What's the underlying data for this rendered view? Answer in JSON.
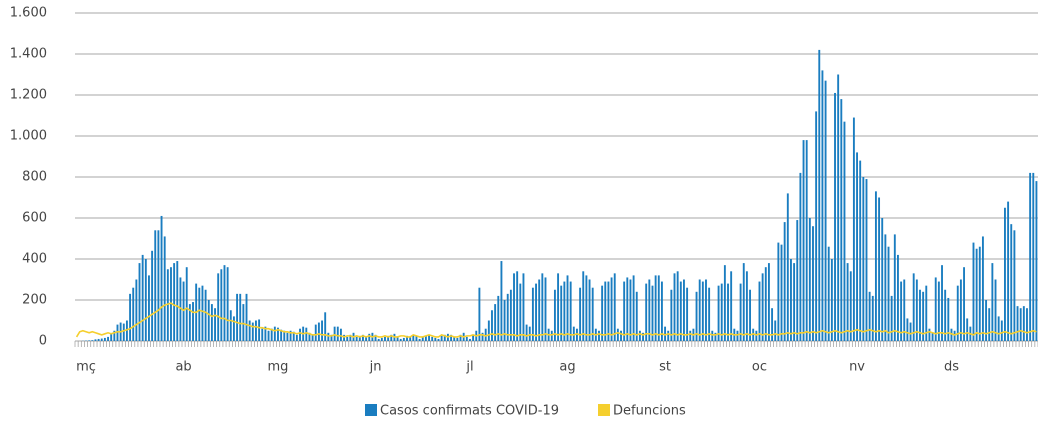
{
  "chart_data": {
    "type": "bar_line",
    "categories": [
      "mç",
      null,
      null,
      null,
      null,
      null,
      null,
      null,
      null,
      null,
      null,
      null,
      null,
      null,
      null,
      null,
      null,
      null,
      null,
      null,
      null,
      null,
      null,
      null,
      null,
      null,
      null,
      null,
      null,
      null,
      null,
      "ab",
      null,
      null,
      null,
      null,
      null,
      null,
      null,
      null,
      null,
      null,
      null,
      null,
      null,
      null,
      null,
      null,
      null,
      null,
      null,
      null,
      null,
      null,
      null,
      null,
      null,
      null,
      null,
      null,
      null,
      "mg",
      null,
      null,
      null,
      null,
      null,
      null,
      null,
      null,
      null,
      null,
      null,
      null,
      null,
      null,
      null,
      null,
      null,
      null,
      null,
      null,
      null,
      null,
      null,
      null,
      null,
      null,
      null,
      null,
      null,
      null,
      "jn",
      null,
      null,
      null,
      null,
      null,
      null,
      null,
      null,
      null,
      null,
      null,
      null,
      null,
      null,
      null,
      null,
      null,
      null,
      null,
      null,
      null,
      null,
      null,
      null,
      null,
      null,
      null,
      null,
      null,
      "jl",
      null,
      null,
      null,
      null,
      null,
      null,
      null,
      null,
      null,
      null,
      null,
      null,
      null,
      null,
      null,
      null,
      null,
      null,
      null,
      null,
      null,
      null,
      null,
      null,
      null,
      null,
      null,
      null,
      null,
      null,
      "ag",
      null,
      null,
      null,
      null,
      null,
      null,
      null,
      null,
      null,
      null,
      null,
      null,
      null,
      null,
      null,
      null,
      null,
      null,
      null,
      null,
      null,
      null,
      null,
      null,
      null,
      null,
      null,
      null,
      null,
      null,
      "st",
      null,
      null,
      null,
      null,
      null,
      null,
      null,
      null,
      null,
      null,
      null,
      null,
      null,
      null,
      null,
      null,
      null,
      null,
      null,
      null,
      null,
      null,
      null,
      null,
      null,
      null,
      null,
      null,
      null,
      "oc",
      null,
      null,
      null,
      null,
      null,
      null,
      null,
      null,
      null,
      null,
      null,
      null,
      null,
      null,
      null,
      null,
      null,
      null,
      null,
      null,
      null,
      null,
      null,
      null,
      null,
      null,
      null,
      null,
      null,
      null,
      "nv",
      null,
      null,
      null,
      null,
      null,
      null,
      null,
      null,
      null,
      null,
      null,
      null,
      null,
      null,
      null,
      null,
      null,
      null,
      null,
      null,
      null,
      null,
      null,
      null,
      null,
      null,
      null,
      null,
      null,
      "ds",
      null,
      null,
      null,
      null,
      null,
      null,
      null,
      null,
      null,
      null,
      null,
      null,
      null,
      null,
      null,
      null,
      null,
      null,
      null,
      null,
      null,
      null,
      null,
      null,
      null,
      null,
      null,
      null,
      null,
      null
    ],
    "series": [
      {
        "name": "Casos confirmats COVID-19",
        "color": "#1a7dc0",
        "kind": "bar",
        "values": [
          0,
          0,
          1,
          2,
          3,
          4,
          8,
          10,
          12,
          15,
          20,
          35,
          50,
          80,
          90,
          85,
          100,
          230,
          260,
          300,
          380,
          420,
          400,
          320,
          440,
          540,
          540,
          610,
          510,
          350,
          360,
          380,
          390,
          310,
          290,
          360,
          180,
          190,
          280,
          260,
          270,
          250,
          200,
          180,
          160,
          330,
          350,
          370,
          360,
          150,
          120,
          230,
          230,
          180,
          230,
          100,
          90,
          100,
          105,
          60,
          70,
          50,
          60,
          70,
          65,
          55,
          50,
          40,
          50,
          45,
          30,
          60,
          70,
          65,
          40,
          30,
          80,
          90,
          100,
          140,
          40,
          30,
          70,
          70,
          60,
          30,
          20,
          30,
          40,
          20,
          25,
          30,
          20,
          35,
          40,
          30,
          10,
          15,
          20,
          25,
          30,
          35,
          20,
          10,
          15,
          25,
          20,
          30,
          25,
          10,
          20,
          25,
          30,
          20,
          15,
          10,
          25,
          30,
          35,
          30,
          20,
          15,
          30,
          40,
          20,
          10,
          30,
          50,
          260,
          40,
          60,
          100,
          150,
          180,
          220,
          390,
          200,
          230,
          250,
          330,
          340,
          280,
          330,
          80,
          70,
          260,
          280,
          300,
          330,
          310,
          60,
          50,
          250,
          330,
          270,
          290,
          320,
          290,
          70,
          60,
          260,
          340,
          320,
          300,
          260,
          60,
          50,
          270,
          290,
          290,
          310,
          330,
          60,
          50,
          290,
          310,
          300,
          320,
          240,
          50,
          40,
          280,
          300,
          270,
          320,
          320,
          290,
          70,
          50,
          250,
          330,
          340,
          290,
          300,
          260,
          50,
          60,
          240,
          300,
          290,
          300,
          260,
          50,
          40,
          270,
          280,
          370,
          280,
          340,
          60,
          50,
          280,
          380,
          340,
          250,
          60,
          50,
          290,
          330,
          360,
          380,
          160,
          100,
          480,
          470,
          580,
          720,
          400,
          380,
          590,
          820,
          980,
          980,
          600,
          560,
          1120,
          1420,
          1320,
          1270,
          460,
          400,
          1210,
          1300,
          1180,
          1070,
          380,
          340,
          1090,
          920,
          880,
          800,
          790,
          240,
          220,
          730,
          700,
          600,
          520,
          460,
          220,
          520,
          420,
          290,
          300,
          110,
          90,
          330,
          300,
          250,
          240,
          270,
          60,
          40,
          310,
          290,
          370,
          250,
          210,
          60,
          50,
          270,
          300,
          360,
          110,
          70,
          480,
          450,
          460,
          510,
          200,
          160,
          380,
          300,
          120,
          100,
          650,
          680,
          570,
          540,
          170,
          160,
          170,
          160,
          820,
          820,
          780
        ]
      },
      {
        "name": "Defuncions",
        "color": "#f5cf2e",
        "kind": "line",
        "values": [
          20,
          45,
          50,
          45,
          40,
          45,
          40,
          35,
          30,
          35,
          40,
          35,
          40,
          45,
          45,
          50,
          55,
          60,
          70,
          80,
          90,
          100,
          110,
          120,
          130,
          140,
          150,
          165,
          175,
          180,
          185,
          175,
          170,
          160,
          150,
          160,
          150,
          140,
          140,
          150,
          145,
          140,
          130,
          120,
          125,
          120,
          110,
          110,
          100,
          100,
          95,
          90,
          85,
          85,
          80,
          75,
          70,
          70,
          65,
          65,
          60,
          60,
          55,
          50,
          55,
          50,
          45,
          45,
          40,
          40,
          35,
          40,
          35,
          40,
          35,
          30,
          30,
          35,
          30,
          30,
          25,
          25,
          30,
          25,
          25,
          20,
          25,
          25,
          20,
          25,
          20,
          25,
          20,
          25,
          20,
          25,
          20,
          20,
          25,
          20,
          25,
          20,
          20,
          25,
          25,
          20,
          20,
          30,
          25,
          20,
          20,
          25,
          30,
          25,
          20,
          20,
          30,
          25,
          20,
          25,
          20,
          20,
          25,
          20,
          25,
          25,
          30,
          25,
          30,
          30,
          25,
          30,
          35,
          30,
          35,
          30,
          35,
          30,
          30,
          30,
          25,
          30,
          30,
          25,
          30,
          30,
          25,
          30,
          30,
          35,
          30,
          30,
          35,
          30,
          35,
          30,
          35,
          30,
          30,
          35,
          30,
          35,
          30,
          30,
          35,
          30,
          35,
          30,
          30,
          35,
          30,
          35,
          40,
          35,
          30,
          35,
          30,
          35,
          30,
          35,
          30,
          35,
          35,
          30,
          35,
          30,
          35,
          30,
          35,
          30,
          35,
          30,
          35,
          30,
          30,
          35,
          30,
          35,
          30,
          35,
          30,
          35,
          30,
          30,
          35,
          30,
          35,
          30,
          35,
          30,
          30,
          35,
          30,
          35,
          30,
          35,
          30,
          35,
          30,
          35,
          30,
          30,
          35,
          30,
          35,
          35,
          40,
          35,
          40,
          35,
          40,
          40,
          45,
          40,
          45,
          40,
          45,
          50,
          45,
          40,
          45,
          50,
          45,
          40,
          45,
          50,
          45,
          50,
          55,
          50,
          45,
          50,
          55,
          50,
          45,
          50,
          45,
          50,
          40,
          45,
          50,
          45,
          40,
          45,
          40,
          35,
          40,
          45,
          40,
          35,
          40,
          45,
          40,
          35,
          40,
          40,
          35,
          40,
          35,
          30,
          35,
          40,
          35,
          40,
          35,
          30,
          40,
          35,
          40,
          35,
          40,
          45,
          40,
          35,
          40,
          45,
          40,
          35,
          40,
          45,
          50,
          45,
          40,
          45,
          50,
          45
        ]
      }
    ],
    "ylim": [
      0,
      1600
    ],
    "yticks": [
      0,
      200,
      400,
      600,
      800,
      {
        "value": 1000,
        "label": "1.000"
      },
      {
        "value": 1200,
        "label": "1.200"
      },
      {
        "value": 1400,
        "label": "1.400"
      },
      {
        "value": 1600,
        "label": "1.600"
      }
    ],
    "grid": true,
    "legend": "bottom"
  }
}
